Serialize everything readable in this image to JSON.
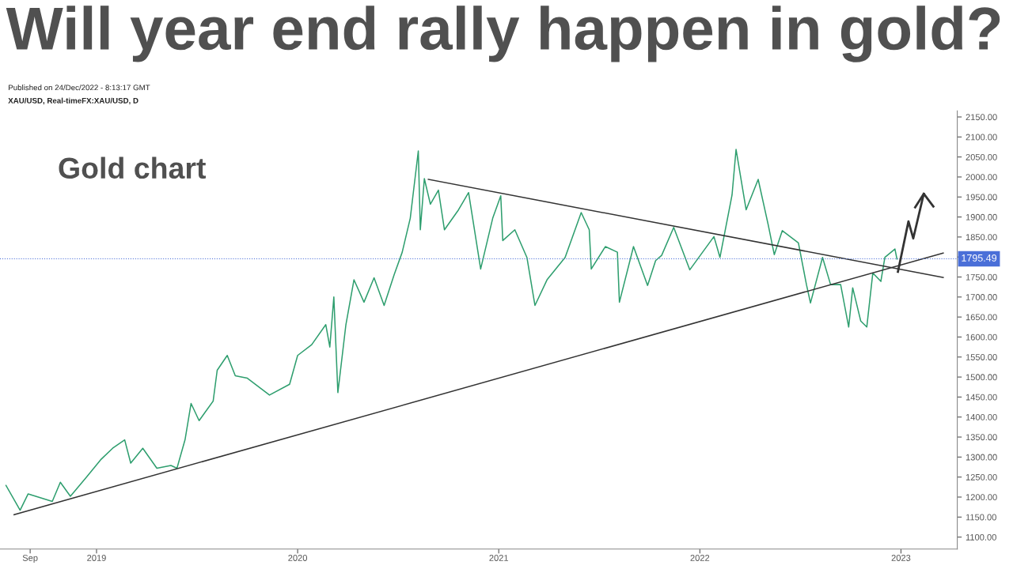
{
  "chart_data": {
    "type": "line",
    "title": "Will year end rally happen in gold?",
    "subtitle": "Published on 24/Dec/2022 - 8:13:17 GMT",
    "annotations": [
      "XAU/USD, Real-timeFX:XAU/USD, D",
      "Gold chart"
    ],
    "series": [
      {
        "color": "#2e9e6e",
        "x": [
          2018.55,
          2018.62,
          2018.66,
          2018.78,
          2018.82,
          2018.87,
          2018.95,
          2019.02,
          2019.08,
          2019.14,
          2019.17,
          2019.23,
          2019.3,
          2019.37,
          2019.4,
          2019.44,
          2019.47,
          2019.51,
          2019.58,
          2019.6,
          2019.65,
          2019.69,
          2019.75,
          2019.86,
          2019.96,
          2020.0,
          2020.07,
          2020.14,
          2020.16,
          2020.18,
          2020.2,
          2020.24,
          2020.28,
          2020.33,
          2020.38,
          2020.43,
          2020.48,
          2020.52,
          2020.56,
          2020.6,
          2020.61,
          2020.63,
          2020.66,
          2020.7,
          2020.73,
          2020.8,
          2020.85,
          2020.91,
          2020.97,
          2021.01,
          2021.02,
          2021.08,
          2021.14,
          2021.18,
          2021.24,
          2021.33,
          2021.41,
          2021.45,
          2021.46,
          2021.53,
          2021.59,
          2021.6,
          2021.67,
          2021.74,
          2021.78,
          2021.81,
          2021.87,
          2021.95,
          2022.07,
          2022.1,
          2022.16,
          2022.18,
          2022.23,
          2022.29,
          2022.34,
          2022.37,
          2022.41,
          2022.49,
          2022.53,
          2022.55,
          2022.61,
          2022.65,
          2022.7,
          2022.74,
          2022.76,
          2022.8,
          2022.83,
          2022.86,
          2022.9,
          2022.92,
          2022.97,
          2022.98
        ],
        "values": [
          1229,
          1167,
          1208,
          1189,
          1237,
          1202,
          1250,
          1293,
          1322,
          1343,
          1285,
          1322,
          1272,
          1279,
          1272,
          1343,
          1434,
          1391,
          1440,
          1517,
          1554,
          1503,
          1497,
          1455,
          1482,
          1554,
          1581,
          1631,
          1575,
          1700,
          1461,
          1631,
          1743,
          1687,
          1748,
          1679,
          1756,
          1812,
          1897,
          2065,
          1868,
          1996,
          1932,
          1967,
          1868,
          1918,
          1961,
          1770,
          1897,
          1953,
          1841,
          1868,
          1799,
          1679,
          1743,
          1799,
          1911,
          1868,
          1770,
          1826,
          1812,
          1687,
          1826,
          1729,
          1791,
          1804,
          1874,
          1768,
          1851,
          1799,
          1955,
          2069,
          1918,
          1994,
          1880,
          1806,
          1866,
          1835,
          1731,
          1685,
          1799,
          1731,
          1731,
          1625,
          1723,
          1640,
          1625,
          1760,
          1739,
          1799,
          1820,
          1795
        ]
      },
      {
        "color": "#333333",
        "x": [
          2018.59,
          2023.21
        ],
        "values": [
          1156,
          1810
        ]
      },
      {
        "color": "#333333",
        "x": [
          2020.65,
          2023.21
        ],
        "values": [
          1994,
          1749
        ]
      }
    ],
    "ref_lines": [
      {
        "axis": "y",
        "value": 1795.49,
        "label": "1795.49",
        "color": "#4a6fd8",
        "line_style": "dotted"
      }
    ],
    "xlim": [
      2018.52,
      2023.28
    ],
    "xticks": [
      {
        "value": 2018.67,
        "label": "Sep"
      },
      2019,
      2020,
      2021,
      2022,
      2023
    ],
    "ylim": [
      1070,
      2165
    ],
    "yticks": [
      {
        "value": 1100,
        "label": "1100.00"
      },
      {
        "value": 1150,
        "label": "1150.00"
      },
      {
        "value": 1200,
        "label": "1200.00"
      },
      {
        "value": 1250,
        "label": "1250.00"
      },
      {
        "value": 1300,
        "label": "1300.00"
      },
      {
        "value": 1350,
        "label": "1350.00"
      },
      {
        "value": 1400,
        "label": "1400.00"
      },
      {
        "value": 1450,
        "label": "1450.00"
      },
      {
        "value": 1500,
        "label": "1500.00"
      },
      {
        "value": 1550,
        "label": "1550.00"
      },
      {
        "value": 1600,
        "label": "1600.00"
      },
      {
        "value": 1650,
        "label": "1650.00"
      },
      {
        "value": 1700,
        "label": "1700.00"
      },
      {
        "value": 1750,
        "label": "1750.00"
      },
      {
        "value": 1800,
        "label": null
      },
      {
        "value": 1850,
        "label": "1850.00"
      },
      {
        "value": 1900,
        "label": "1900.00"
      },
      {
        "value": 1950,
        "label": "1950.00"
      },
      {
        "value": 2000,
        "label": "2000.00"
      },
      {
        "value": 2050,
        "label": "2050.00"
      },
      {
        "value": 2100,
        "label": "2100.00"
      },
      {
        "value": 2150,
        "label": "2150.00"
      }
    ],
    "grid": false,
    "legend": false
  }
}
